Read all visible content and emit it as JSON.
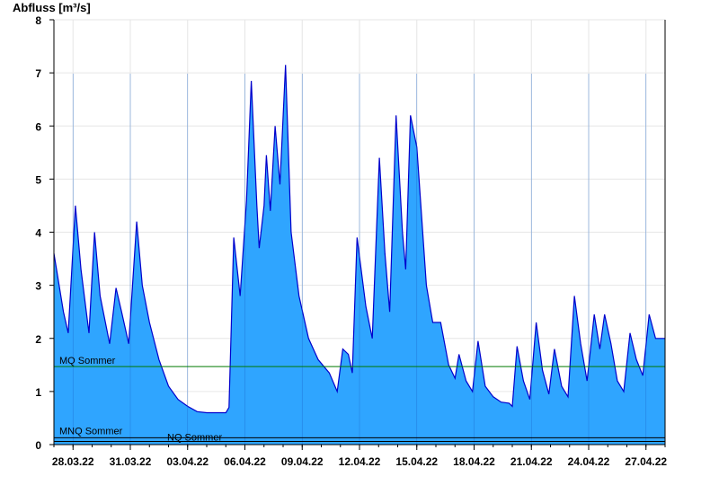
{
  "chart_data": {
    "type": "area",
    "title": "Abfluss [m³/s]",
    "ylabel": "Abfluss [m³/s]",
    "xlabel": "",
    "ylim": [
      0,
      8
    ],
    "yticks": [
      0,
      1,
      2,
      3,
      4,
      5,
      6,
      7,
      8
    ],
    "xlim": [
      "2022-03-27",
      "2022-04-28"
    ],
    "xticks": [
      "28.03.22",
      "31.03.22",
      "03.04.22",
      "06.04.22",
      "09.04.22",
      "12.04.22",
      "15.04.22",
      "18.04.22",
      "21.04.22",
      "24.04.22",
      "27.04.22"
    ],
    "grid": true,
    "fill_color": "#2fa5ff",
    "line_color": "#0000cc",
    "series": [
      {
        "name": "Abfluss",
        "points": [
          [
            "2022-03-27",
            3.6
          ],
          [
            "2022-03-27 12:00",
            2.5
          ],
          [
            "2022-03-27 18:00",
            2.1
          ],
          [
            "2022-03-28 03:00",
            4.5
          ],
          [
            "2022-03-28 10:00",
            3.3
          ],
          [
            "2022-03-28 20:00",
            2.1
          ],
          [
            "2022-03-29 03:00",
            4.0
          ],
          [
            "2022-03-29 10:00",
            2.8
          ],
          [
            "2022-03-29 22:00",
            1.9
          ],
          [
            "2022-03-30 06:00",
            2.95
          ],
          [
            "2022-03-30 13:00",
            2.5
          ],
          [
            "2022-03-30 22:00",
            1.9
          ],
          [
            "2022-03-31 08:00",
            4.2
          ],
          [
            "2022-03-31 15:00",
            3.0
          ],
          [
            "2022-04-01 00:00",
            2.3
          ],
          [
            "2022-04-01 12:00",
            1.6
          ],
          [
            "2022-04-02 00:00",
            1.1
          ],
          [
            "2022-04-02 12:00",
            0.85
          ],
          [
            "2022-04-03 00:00",
            0.72
          ],
          [
            "2022-04-03 12:00",
            0.62
          ],
          [
            "2022-04-04 00:00",
            0.6
          ],
          [
            "2022-04-05 00:00",
            0.6
          ],
          [
            "2022-04-05 04:00",
            0.7
          ],
          [
            "2022-04-05 10:00",
            3.9
          ],
          [
            "2022-04-05 18:00",
            2.8
          ],
          [
            "2022-04-06 02:00",
            4.6
          ],
          [
            "2022-04-06 08:00",
            6.85
          ],
          [
            "2022-04-06 15:00",
            4.5
          ],
          [
            "2022-04-06 18:00",
            3.7
          ],
          [
            "2022-04-07 00:00",
            4.5
          ],
          [
            "2022-04-07 03:00",
            5.45
          ],
          [
            "2022-04-07 08:00",
            4.4
          ],
          [
            "2022-04-07 14:00",
            6.0
          ],
          [
            "2022-04-07 20:00",
            4.9
          ],
          [
            "2022-04-08 03:00",
            7.15
          ],
          [
            "2022-04-08 10:00",
            4.0
          ],
          [
            "2022-04-08 20:00",
            2.8
          ],
          [
            "2022-04-09 08:00",
            2.0
          ],
          [
            "2022-04-09 20:00",
            1.6
          ],
          [
            "2022-04-10 10:00",
            1.35
          ],
          [
            "2022-04-10 20:00",
            1.0
          ],
          [
            "2022-04-11 03:00",
            1.8
          ],
          [
            "2022-04-11 10:00",
            1.7
          ],
          [
            "2022-04-11 15:00",
            1.35
          ],
          [
            "2022-04-11 21:00",
            3.9
          ],
          [
            "2022-04-12 08:00",
            2.6
          ],
          [
            "2022-04-12 16:00",
            2.0
          ],
          [
            "2022-04-13 01:00",
            5.4
          ],
          [
            "2022-04-13 08:00",
            3.6
          ],
          [
            "2022-04-13 14:00",
            2.5
          ],
          [
            "2022-04-13 22:00",
            6.2
          ],
          [
            "2022-04-14 06:00",
            4.0
          ],
          [
            "2022-04-14 10:00",
            3.3
          ],
          [
            "2022-04-14 16:00",
            6.2
          ],
          [
            "2022-04-15 00:00",
            5.6
          ],
          [
            "2022-04-15 12:00",
            3.0
          ],
          [
            "2022-04-15 20:00",
            2.3
          ],
          [
            "2022-04-16 06:00",
            2.3
          ],
          [
            "2022-04-16 16:00",
            1.5
          ],
          [
            "2022-04-17 00:00",
            1.25
          ],
          [
            "2022-04-17 05:00",
            1.7
          ],
          [
            "2022-04-17 14:00",
            1.2
          ],
          [
            "2022-04-17 22:00",
            1.0
          ],
          [
            "2022-04-18 05:00",
            1.95
          ],
          [
            "2022-04-18 14:00",
            1.1
          ],
          [
            "2022-04-19 00:00",
            0.9
          ],
          [
            "2022-04-19 10:00",
            0.8
          ],
          [
            "2022-04-19 20:00",
            0.78
          ],
          [
            "2022-04-20 00:00",
            0.72
          ],
          [
            "2022-04-20 06:00",
            1.85
          ],
          [
            "2022-04-20 14:00",
            1.2
          ],
          [
            "2022-04-20 22:00",
            0.85
          ],
          [
            "2022-04-21 06:00",
            2.3
          ],
          [
            "2022-04-21 14:00",
            1.4
          ],
          [
            "2022-04-21 22:00",
            0.95
          ],
          [
            "2022-04-22 05:00",
            1.8
          ],
          [
            "2022-04-22 14:00",
            1.1
          ],
          [
            "2022-04-22 22:00",
            0.9
          ],
          [
            "2022-04-23 06:00",
            2.8
          ],
          [
            "2022-04-23 14:00",
            1.9
          ],
          [
            "2022-04-23 22:00",
            1.2
          ],
          [
            "2022-04-24 07:00",
            2.45
          ],
          [
            "2022-04-24 14:00",
            1.8
          ],
          [
            "2022-04-24 20:00",
            2.45
          ],
          [
            "2022-04-25 04:00",
            1.9
          ],
          [
            "2022-04-25 12:00",
            1.2
          ],
          [
            "2022-04-25 20:00",
            1.0
          ],
          [
            "2022-04-26 04:00",
            2.1
          ],
          [
            "2022-04-26 12:00",
            1.6
          ],
          [
            "2022-04-26 20:00",
            1.3
          ],
          [
            "2022-04-27 04:00",
            2.45
          ],
          [
            "2022-04-27 12:00",
            2.0
          ],
          [
            "2022-04-28 00:00",
            2.0
          ]
        ]
      }
    ],
    "reference_lines": [
      {
        "label": "MQ Sommer",
        "value": 1.47,
        "color": "#007a00"
      },
      {
        "label": "MNQ Sommer",
        "value": 0.13,
        "color": "#000000"
      },
      {
        "label": "NQ Sommer",
        "value": 0.06,
        "color": "#000000"
      }
    ]
  }
}
